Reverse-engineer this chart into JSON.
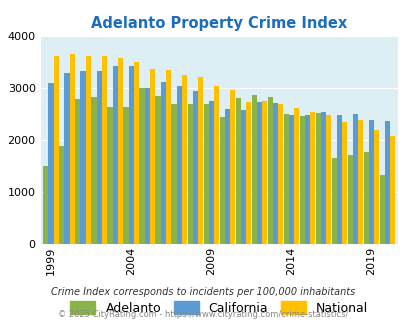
{
  "title": "Adelanto Property Crime Index",
  "title_color": "#1a6ebd",
  "years": [
    1999,
    2000,
    2001,
    2002,
    2003,
    2004,
    2005,
    2006,
    2007,
    2008,
    2009,
    2010,
    2011,
    2012,
    2013,
    2014,
    2015,
    2016,
    2017,
    2018,
    2019,
    2020
  ],
  "adelanto": [
    1500,
    1880,
    2800,
    2830,
    2640,
    2640,
    3000,
    2850,
    2700,
    2700,
    2700,
    2450,
    2820,
    2870,
    2830,
    2500,
    2470,
    2530,
    1650,
    1720,
    1780,
    1340
  ],
  "california": [
    3100,
    3300,
    3340,
    3340,
    3430,
    3430,
    3000,
    3130,
    3050,
    2940,
    2750,
    2600,
    2590,
    2740,
    2720,
    2490,
    2490,
    2550,
    2490,
    2500,
    2390,
    2370
  ],
  "national": [
    3620,
    3660,
    3620,
    3620,
    3580,
    3500,
    3370,
    3350,
    3250,
    3210,
    3040,
    2960,
    2730,
    2750,
    2700,
    2620,
    2540,
    2490,
    2360,
    2380,
    2190,
    2090
  ],
  "adelanto_color": "#8ab34a",
  "california_color": "#5b9bd5",
  "national_color": "#ffc000",
  "bg_color": "#ddeef5",
  "ylim": [
    0,
    4000
  ],
  "yticks": [
    0,
    1000,
    2000,
    3000,
    4000
  ],
  "xtick_years": [
    1999,
    2004,
    2009,
    2014,
    2019
  ],
  "legend_labels": [
    "Adelanto",
    "California",
    "National"
  ],
  "footnote1": "Crime Index corresponds to incidents per 100,000 inhabitants",
  "footnote2": "© 2025 CityRating.com - https://www.cityrating.com/crime-statistics/",
  "footnote1_color": "#333333",
  "footnote2_color": "#888888"
}
